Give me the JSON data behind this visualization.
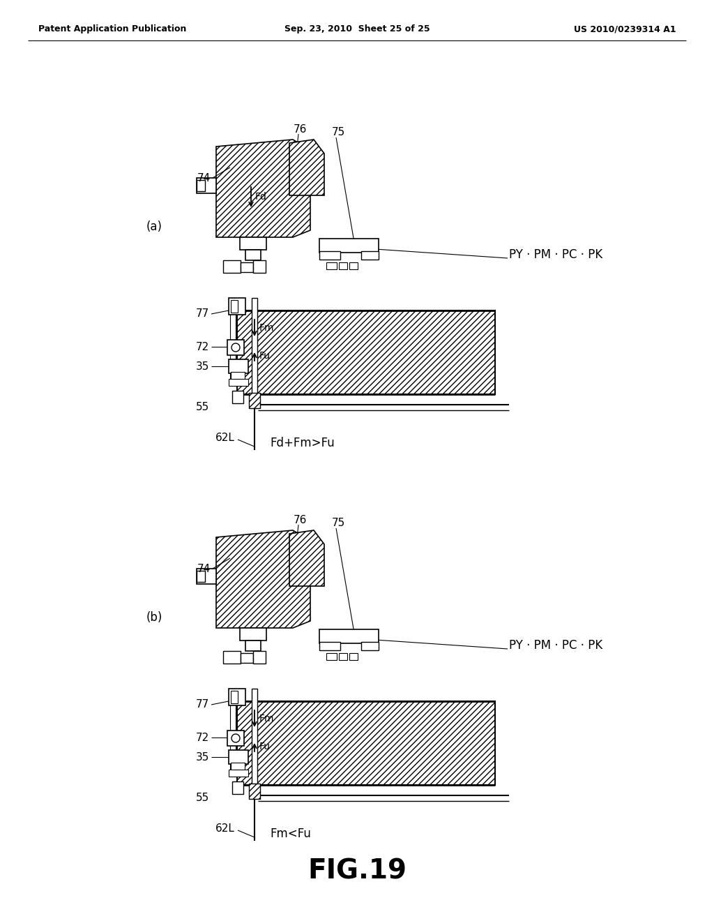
{
  "background_color": "#ffffff",
  "header_left": "Patent Application Publication",
  "header_mid": "Sep. 23, 2010  Sheet 25 of 25",
  "header_right": "US 2010/0239314 A1",
  "figure_title": "FIG.19",
  "panel_a_label": "(a)",
  "panel_b_label": "(b)",
  "panel_a_formula": "Fd+Fm>Fu",
  "panel_b_formula": "Fm<Fu",
  "label_py_pm_pc_pk": "PY · PM · PC · PK",
  "panel_a_oy": 110,
  "panel_b_oy": 670,
  "panel_ox": 295
}
